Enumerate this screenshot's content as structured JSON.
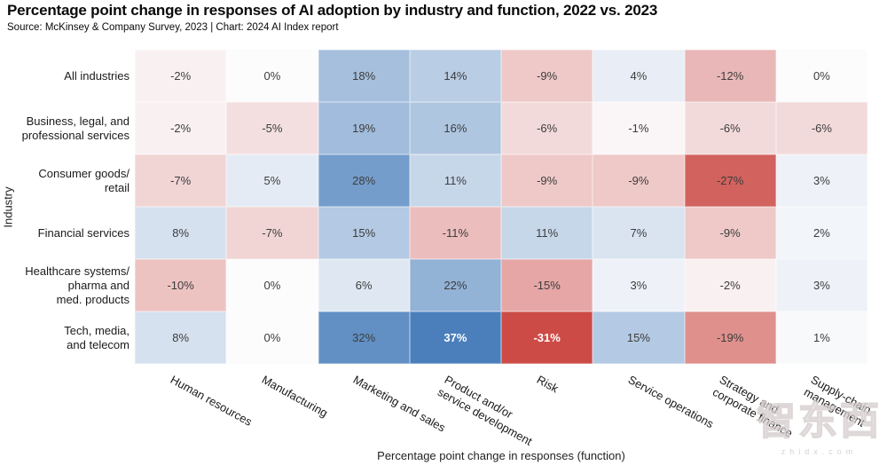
{
  "header": {
    "title": "Percentage point change in responses of AI adoption by industry and function, 2022 vs. 2023",
    "source": "Source: McKinsey & Company Survey, 2023 | Chart: 2024 AI Index report"
  },
  "chart_data": {
    "type": "heatmap",
    "title": "Percentage point change in responses of AI adoption by industry and function, 2022 vs. 2023",
    "xlabel": "Percentage point change in responses (function)",
    "ylabel": "Industry",
    "columns": [
      "Human resources",
      "Manufacturing",
      "Marketing and sales",
      "Product and/or\nservice development",
      "Risk",
      "Service operations",
      "Strategy and\ncorporate finance",
      "Supply-chain\nmanagement"
    ],
    "rows": [
      "All industries",
      "Business, legal, and\nprofessional services",
      "Consumer goods/\nretail",
      "Financial services",
      "Healthcare systems/\npharma and\nmed. products",
      "Tech, media,\nand telecom"
    ],
    "values": [
      [
        -2,
        0,
        18,
        14,
        -9,
        4,
        -12,
        0
      ],
      [
        -2,
        -5,
        19,
        16,
        -6,
        -1,
        -6,
        -6
      ],
      [
        -7,
        5,
        28,
        11,
        -9,
        -9,
        -27,
        3
      ],
      [
        8,
        -7,
        15,
        -11,
        11,
        7,
        -9,
        2
      ],
      [
        -10,
        0,
        6,
        22,
        -15,
        3,
        -2,
        3
      ],
      [
        8,
        0,
        32,
        37,
        -31,
        15,
        -19,
        1
      ]
    ],
    "value_suffix": "%",
    "scale": {
      "min": -31,
      "max": 37
    },
    "legend_position": "none",
    "grid": "off",
    "colors": {
      "positive_max": "#4a7fbc",
      "negative_max": "#cc4b47",
      "zero": "#fcfcfd",
      "cell_text": "#3c3c3c",
      "cell_text_light": "#ffffff"
    }
  },
  "watermark": {
    "text": "智东西",
    "subtext": "zhidx.com"
  }
}
